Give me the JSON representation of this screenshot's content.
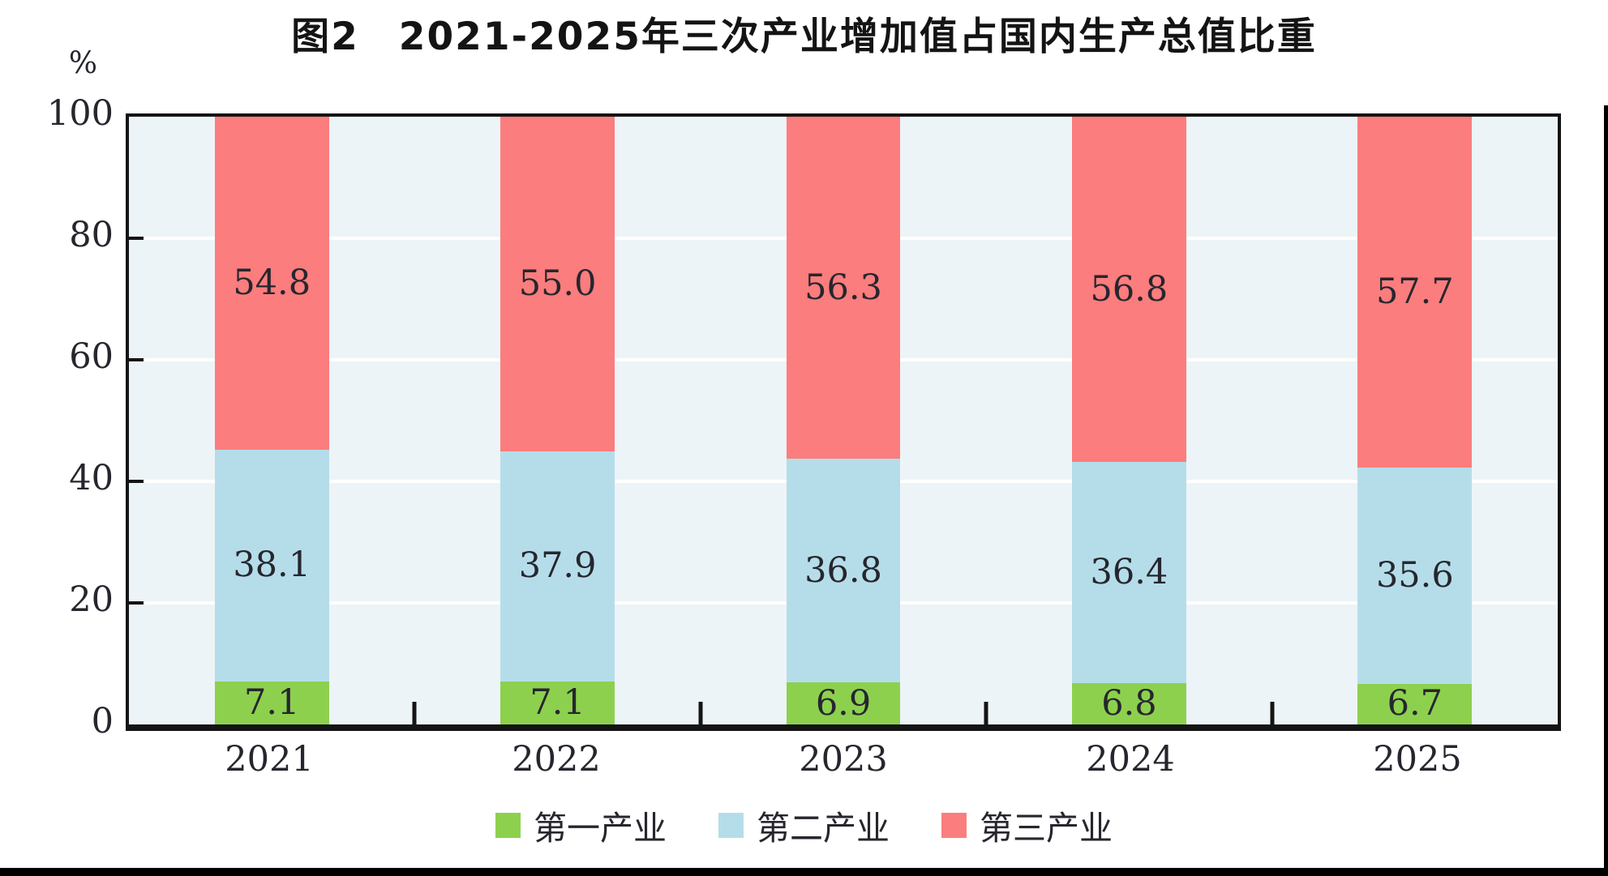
{
  "title": "图2　2021-2025年三次产业增加值占国内生产总值比重",
  "y_axis_unit": "%",
  "chart_data": {
    "type": "bar",
    "stacked": true,
    "title": "图2　2021-2025年三次产业增加值占国内生产总值比重",
    "xlabel": "",
    "ylabel": "%",
    "ylim": [
      0,
      100
    ],
    "yticks": [
      0,
      20,
      40,
      60,
      80,
      100
    ],
    "grid": true,
    "legend_position": "bottom",
    "categories": [
      "2021",
      "2022",
      "2023",
      "2024",
      "2025"
    ],
    "series": [
      {
        "name": "第一产业",
        "color": "#8DD04E",
        "values": [
          7.1,
          7.1,
          6.9,
          6.8,
          6.7
        ],
        "labels": [
          "7.1",
          "7.1",
          "6.9",
          "6.8",
          "6.7"
        ]
      },
      {
        "name": "第二产业",
        "color": "#B5DDE9",
        "values": [
          38.1,
          37.9,
          36.8,
          36.4,
          35.6
        ],
        "labels": [
          "38.1",
          "37.9",
          "36.8",
          "36.4",
          "35.6"
        ]
      },
      {
        "name": "第三产业",
        "color": "#FB7D7D",
        "values": [
          54.8,
          55.0,
          56.3,
          56.8,
          57.7
        ],
        "labels": [
          "54.8",
          "55.0",
          "56.3",
          "56.8",
          "57.7"
        ]
      }
    ]
  },
  "colors": {
    "plot_background": "#EDF4F7",
    "gridline": "#FFFFFF",
    "frame": "#141414",
    "text": "#26262E",
    "page_border": "#000000"
  }
}
